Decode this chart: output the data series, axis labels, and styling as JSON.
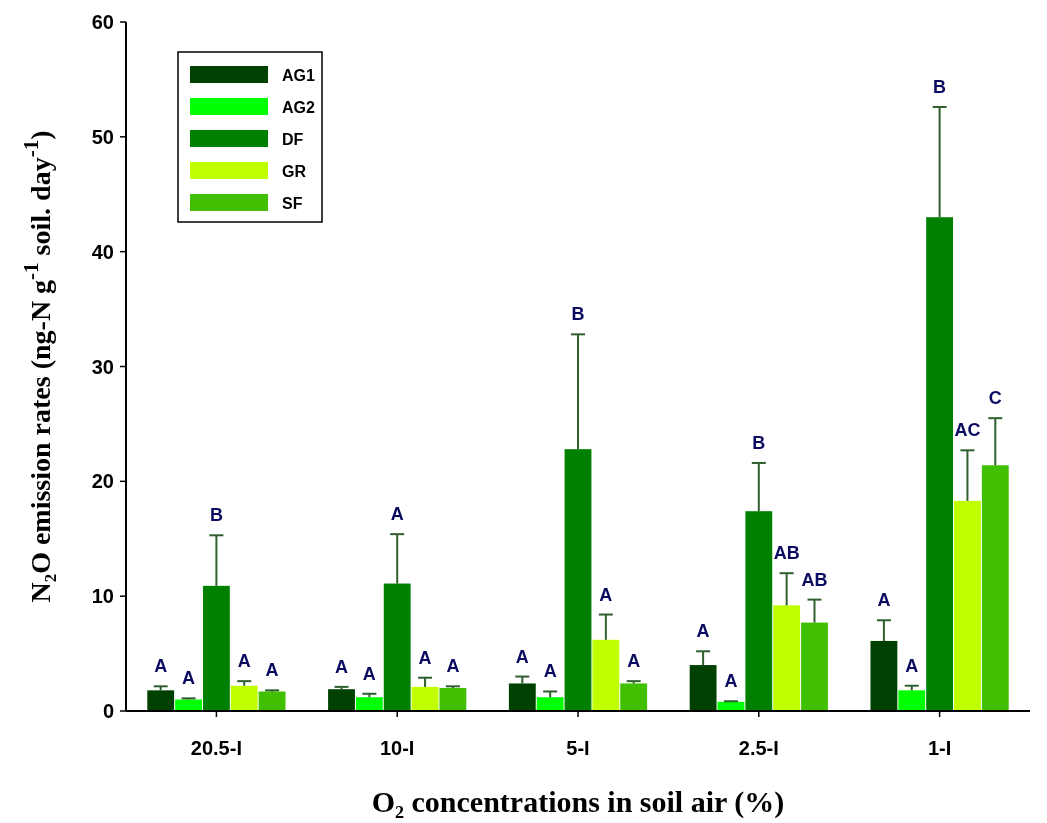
{
  "chart_data": {
    "type": "bar",
    "xlabel": "O₂ concentrations in soil air (%)",
    "ylabel": "N₂O emission rates (ng-N g$^{-1}$ soil. day$^{-1}$)",
    "categories": [
      "20.5-I",
      "10-I",
      "5-I",
      "2.5-I",
      "1-I"
    ],
    "series": [
      {
        "name": "AG1",
        "color": "#004000",
        "values": [
          1.8,
          1.9,
          2.4,
          4.0,
          6.1
        ],
        "errors": [
          [
            1.8,
            2.15
          ],
          [
            1.9,
            2.1
          ],
          [
            2.4,
            3.0
          ],
          [
            4.0,
            5.2
          ],
          [
            6.1,
            7.9
          ]
        ]
      },
      {
        "name": "AG2",
        "color": "#00ff00",
        "values": [
          1.0,
          1.2,
          1.2,
          0.8,
          1.8
        ],
        "errors": [
          [
            1.0,
            1.1
          ],
          [
            1.2,
            1.5
          ],
          [
            1.2,
            1.7
          ],
          [
            0.8,
            0.85
          ],
          [
            1.8,
            2.2
          ]
        ]
      },
      {
        "name": "DF",
        "color": "#008000",
        "values": [
          10.9,
          11.1,
          22.8,
          17.4,
          43.0
        ],
        "errors": [
          [
            10.9,
            15.3
          ],
          [
            11.1,
            15.4
          ],
          [
            22.8,
            32.8
          ],
          [
            17.4,
            21.6
          ],
          [
            43.0,
            52.6
          ]
        ]
      },
      {
        "name": "GR",
        "color": "#c0ff00",
        "values": [
          2.2,
          2.1,
          6.2,
          9.2,
          18.3
        ],
        "errors": [
          [
            2.2,
            2.6
          ],
          [
            2.1,
            2.9
          ],
          [
            6.2,
            8.4
          ],
          [
            9.2,
            12.0
          ],
          [
            18.3,
            22.7
          ]
        ]
      },
      {
        "name": "SF",
        "color": "#40c000",
        "values": [
          1.7,
          2.0,
          2.4,
          7.7,
          21.4
        ],
        "errors": [
          [
            1.7,
            1.8
          ],
          [
            2.0,
            2.15
          ],
          [
            2.4,
            2.6
          ],
          [
            7.7,
            9.7
          ],
          [
            21.4,
            25.5
          ]
        ]
      }
    ],
    "annotations": [
      "A",
      "A",
      "B",
      "A",
      "A",
      "A",
      "A",
      "A",
      "A",
      "A",
      "A",
      "A",
      "B",
      "A",
      "A",
      "A",
      "A",
      "B",
      "AB",
      "AB",
      "A",
      "A",
      "B",
      "AC",
      "C"
    ],
    "ylim": [
      0,
      60
    ],
    "yticks": [
      0,
      10,
      20,
      30,
      40,
      50,
      60
    ],
    "grid": false,
    "legend": "top left"
  }
}
